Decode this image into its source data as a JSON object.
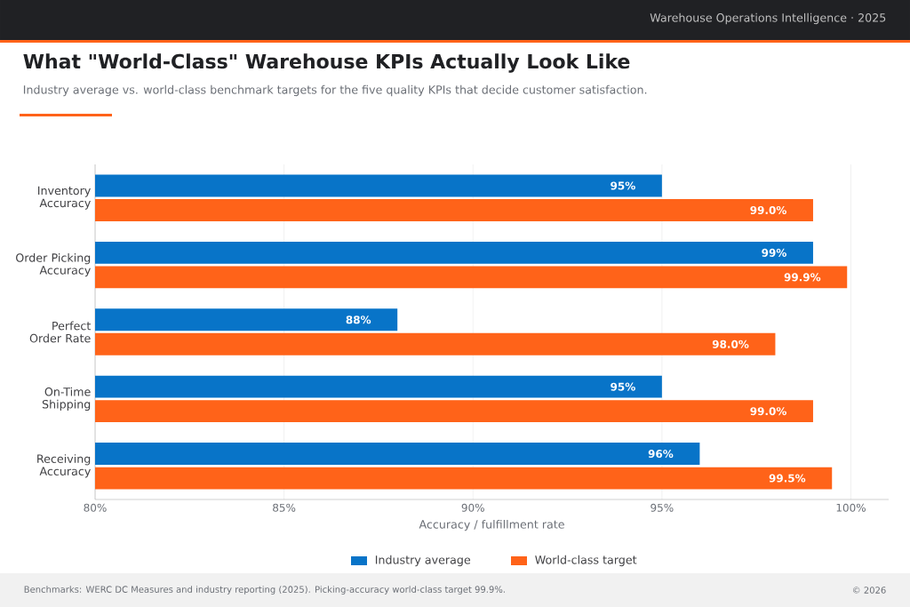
{
  "chart_data": {
    "type": "bar",
    "orientation": "horizontal",
    "title": "What \"World-Class\" Warehouse KPIs Actually Look Like",
    "subtitle": "Industry average vs. world-class benchmark targets for the five quality KPIs that decide customer satisfaction.",
    "xlabel": "Accuracy / fulfillment rate",
    "categories": [
      "Inventory Accuracy",
      "Order Picking Accuracy",
      "Perfect Order Rate",
      "On-Time Shipping",
      "Receiving Accuracy"
    ],
    "series": [
      {
        "name": "Industry average",
        "color": "#0874c8",
        "values": [
          95,
          99,
          88,
          95,
          96
        ],
        "value_labels": [
          "95%",
          "99%",
          "88%",
          "95%",
          "96%"
        ]
      },
      {
        "name": "World-class target",
        "color": "#ff6319",
        "values": [
          99.0,
          99.9,
          98.0,
          99.0,
          99.5
        ],
        "value_labels": [
          "99.0%",
          "99.9%",
          "98.0%",
          "99.0%",
          "99.5%"
        ]
      }
    ],
    "xlim": [
      80,
      101
    ],
    "xticks": [
      {
        "value": 80,
        "label": "80%"
      },
      {
        "value": 85,
        "label": "85%"
      },
      {
        "value": 90,
        "label": "90%"
      },
      {
        "value": 95,
        "label": "95%"
      },
      {
        "value": 100,
        "label": "100%"
      }
    ],
    "grid": "x",
    "legend": "bottom",
    "annotations": [
      "Warehouse Operations Intelligence · 2025",
      "Benchmarks: WERC DC Measures and industry reporting (2025). Picking-accuracy world-class target 99.9%.",
      "© 2026"
    ]
  }
}
